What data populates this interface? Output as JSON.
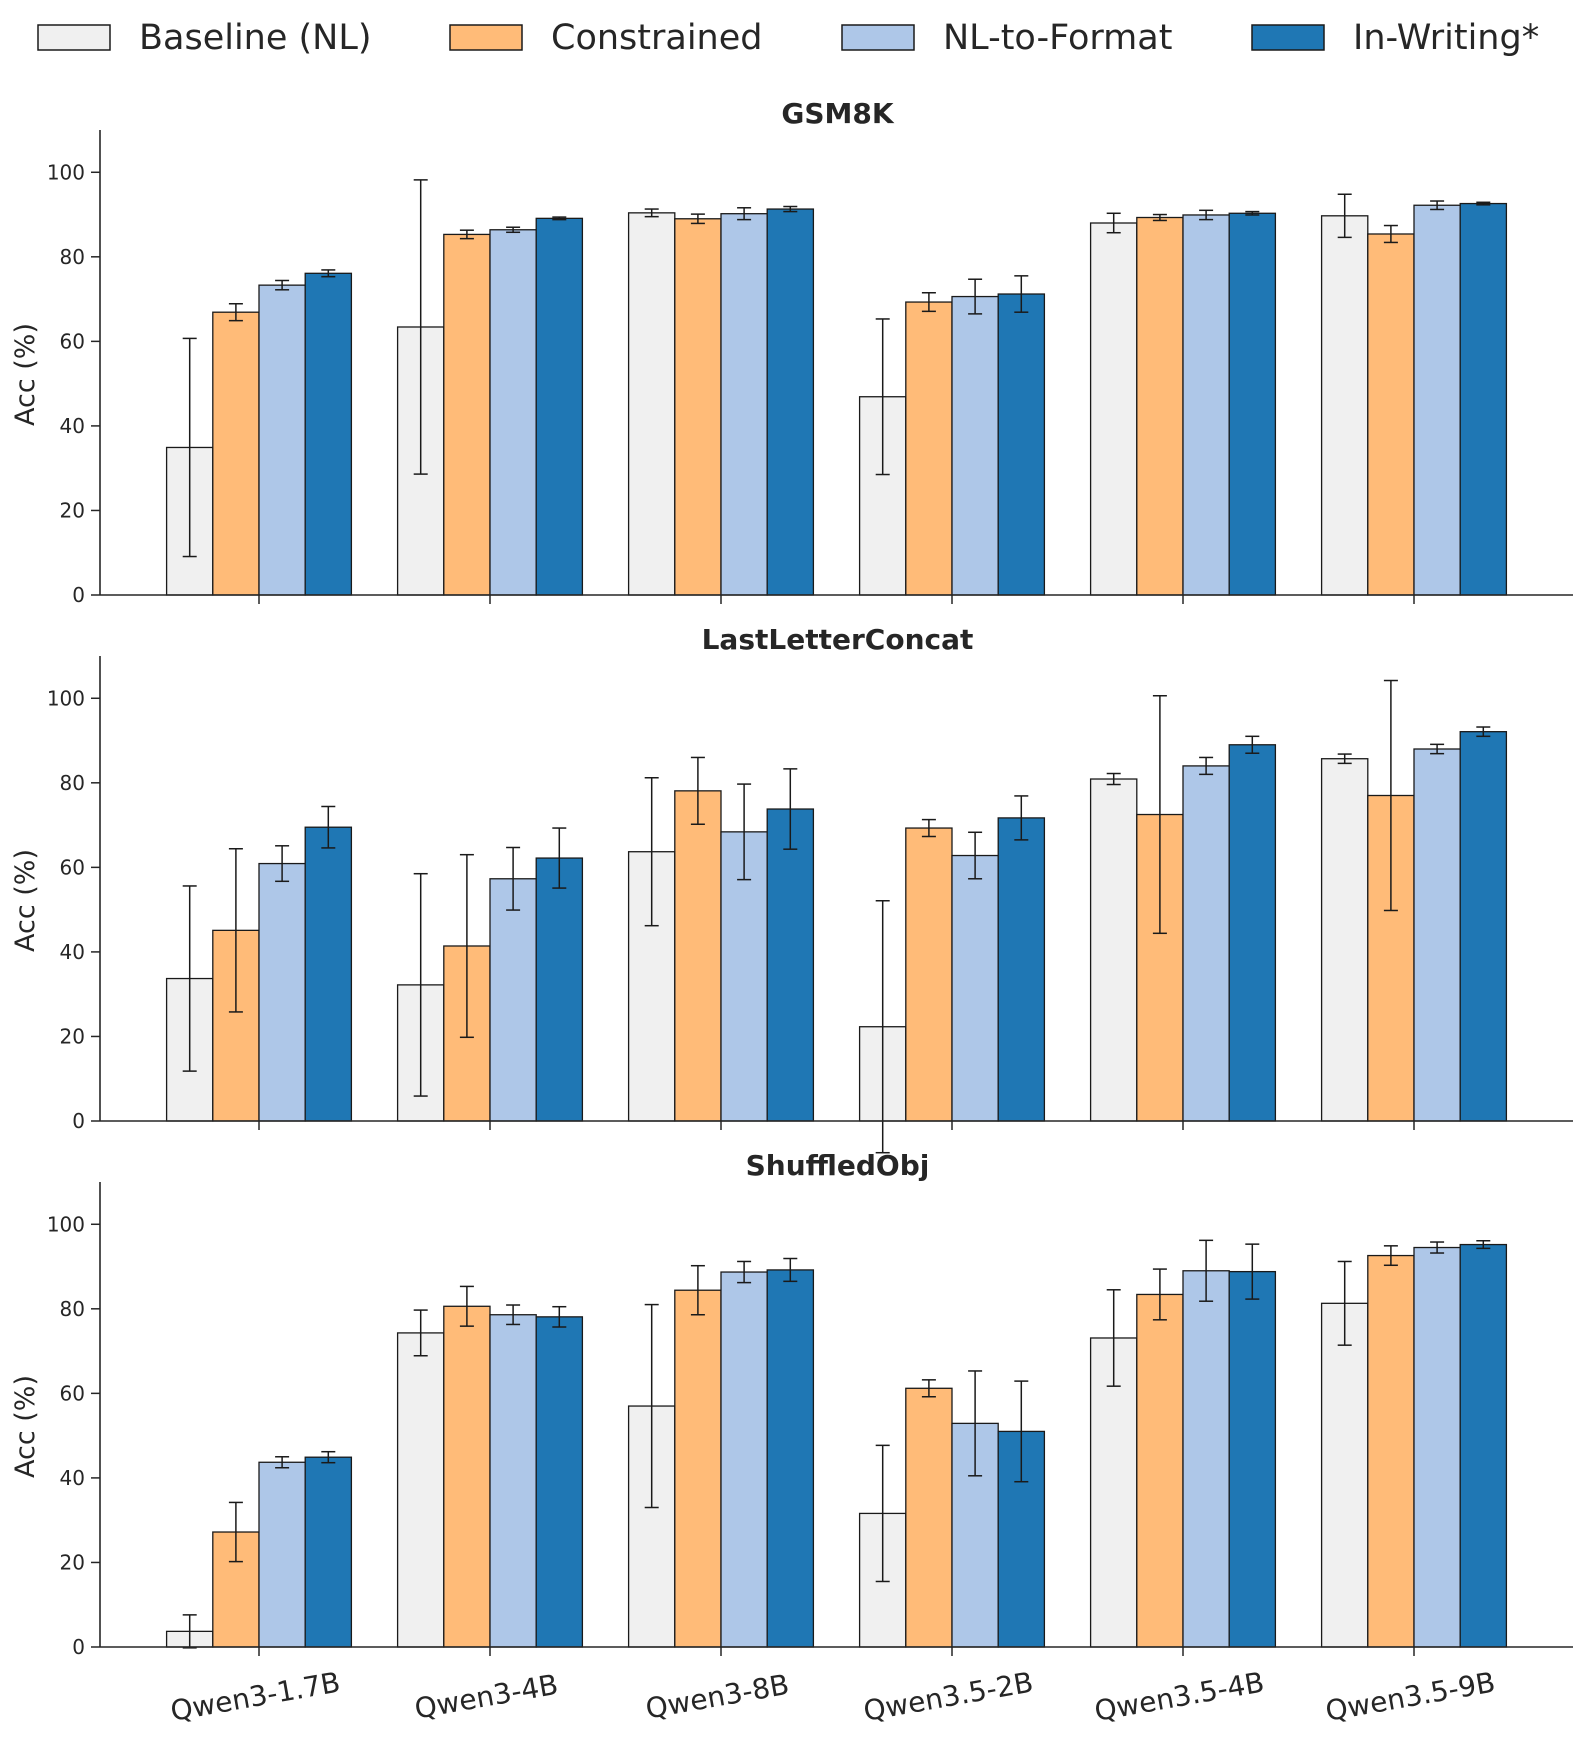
{
  "chart_data": {
    "type": "bar",
    "legend": {
      "placement": "top",
      "entries": [
        "Baseline (NL)",
        "Constrained",
        "NL-to-Format",
        "In-Writing*"
      ]
    },
    "series_colors": [
      "#f0f0f0",
      "#ffbb78",
      "#aec7e8",
      "#1f77b4"
    ],
    "categories": [
      "Qwen3-1.7B",
      "Qwen3-4B",
      "Qwen3-8B",
      "Qwen3.5-2B",
      "Qwen3.5-4B",
      "Qwen3.5-9B"
    ],
    "ylabel": "Acc (%)",
    "ylim": [
      0,
      110
    ],
    "yticks": [
      0,
      20,
      40,
      60,
      80,
      100
    ],
    "grid": false,
    "panels": [
      {
        "title": "GSM8K",
        "series": [
          {
            "name": "Baseline (NL)",
            "values": [
              34.9,
              63.4,
              90.4,
              46.9,
              88.0,
              89.7
            ],
            "err": [
              25.8,
              34.8,
              0.9,
              18.4,
              2.3,
              5.1
            ]
          },
          {
            "name": "Constrained",
            "values": [
              66.9,
              85.3,
              89.0,
              69.3,
              89.3,
              85.4
            ],
            "err": [
              2.0,
              1.0,
              1.1,
              2.2,
              0.7,
              2.0
            ]
          },
          {
            "name": "NL-to-Format",
            "values": [
              73.3,
              86.4,
              90.2,
              70.6,
              89.9,
              92.2
            ],
            "err": [
              1.1,
              0.6,
              1.4,
              4.1,
              1.1,
              1.0
            ]
          },
          {
            "name": "In-Writing*",
            "values": [
              76.1,
              89.1,
              91.3,
              71.2,
              90.3,
              92.6
            ],
            "err": [
              0.8,
              0.3,
              0.6,
              4.3,
              0.4,
              0.3
            ]
          }
        ]
      },
      {
        "title": "LastLetterConcat",
        "series": [
          {
            "name": "Baseline (NL)",
            "values": [
              33.7,
              32.2,
              63.7,
              22.3,
              80.9,
              85.7
            ],
            "err": [
              21.9,
              26.3,
              17.5,
              29.8,
              1.3,
              1.1
            ]
          },
          {
            "name": "Constrained",
            "values": [
              45.1,
              41.4,
              78.1,
              69.3,
              72.5,
              77.0
            ],
            "err": [
              19.3,
              21.6,
              7.9,
              2.0,
              28.1,
              27.2
            ]
          },
          {
            "name": "NL-to-Format",
            "values": [
              60.9,
              57.3,
              68.4,
              62.8,
              84.0,
              88.0
            ],
            "err": [
              4.2,
              7.4,
              11.3,
              5.5,
              2.0,
              1.1
            ]
          },
          {
            "name": "In-Writing*",
            "values": [
              69.5,
              62.2,
              73.8,
              71.7,
              89.0,
              92.1
            ],
            "err": [
              4.9,
              7.1,
              9.5,
              5.2,
              2.0,
              1.1
            ]
          }
        ]
      },
      {
        "title": "ShuffledObj",
        "series": [
          {
            "name": "Baseline (NL)",
            "values": [
              3.7,
              74.3,
              57.0,
              31.6,
              73.1,
              81.3
            ],
            "err": [
              3.9,
              5.4,
              24.0,
              16.1,
              11.4,
              9.9
            ]
          },
          {
            "name": "Constrained",
            "values": [
              27.2,
              80.6,
              84.4,
              61.2,
              83.4,
              92.6
            ],
            "err": [
              7.0,
              4.7,
              5.8,
              2.0,
              6.0,
              2.3
            ]
          },
          {
            "name": "NL-to-Format",
            "values": [
              43.7,
              78.6,
              88.7,
              52.9,
              89.0,
              94.5
            ],
            "err": [
              1.3,
              2.3,
              2.5,
              12.4,
              7.2,
              1.3
            ]
          },
          {
            "name": "In-Writing*",
            "values": [
              44.9,
              78.1,
              89.2,
              51.0,
              88.8,
              95.2
            ],
            "err": [
              1.3,
              2.4,
              2.7,
              11.9,
              6.5,
              0.9
            ]
          }
        ]
      }
    ]
  }
}
